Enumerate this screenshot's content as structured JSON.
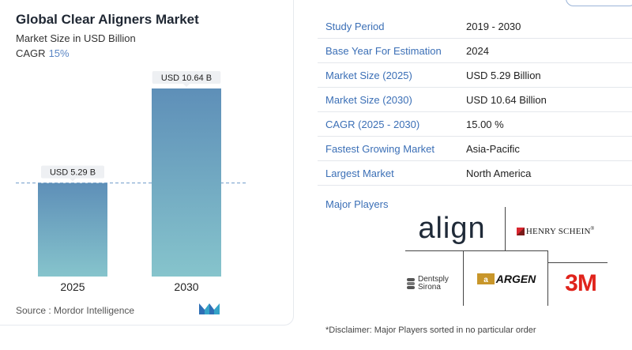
{
  "chart": {
    "title": "Global Clear Aligners Market",
    "subtitle": "Market Size in USD Billion",
    "cagr_label": "CAGR",
    "cagr_value": "15%",
    "source": "Source : Mordor Intelligence"
  },
  "chart_data": {
    "type": "bar",
    "categories": [
      "2025",
      "2030"
    ],
    "values": [
      5.29,
      10.64
    ],
    "data_labels": [
      "USD 5.29 B",
      "USD 10.64 B"
    ],
    "title": "Global Clear Aligners Market",
    "ylabel": "Market Size in USD Billion",
    "xlabel": "",
    "ylim": [
      0,
      10.64
    ],
    "grid": false,
    "reference_line": 5.29,
    "bar_color_top": "#5e8fb8",
    "bar_color_bottom": "#86c4cc"
  },
  "info": {
    "rows": [
      {
        "key": "Study Period",
        "value": "2019 - 2030"
      },
      {
        "key": "Base Year For Estimation",
        "value": "2024"
      },
      {
        "key": "Market Size (2025)",
        "value": "USD 5.29 Billion"
      },
      {
        "key": "Market Size (2030)",
        "value": "USD 10.64 Billion"
      },
      {
        "key": "CAGR (2025 - 2030)",
        "value": "15.00 %"
      },
      {
        "key": "Fastest Growing Market",
        "value": "Asia-Pacific"
      },
      {
        "key": "Largest Market",
        "value": "North America"
      }
    ],
    "major_players_label": "Major Players"
  },
  "players": {
    "align": "align",
    "henry_schein": "HENRY SCHEIN",
    "dentsply_line1": "Dentsply",
    "dentsply_line2": "Sirona",
    "argen": "ARGEN",
    "three_m": "3M"
  },
  "disclaimer": "*Disclaimer: Major Players sorted in no particular order",
  "colors": {
    "accent": "#3b6fb6",
    "three_m_red": "#e0231b",
    "henry_schein_red": "#d8262e",
    "argen_gold": "#c8962a"
  }
}
